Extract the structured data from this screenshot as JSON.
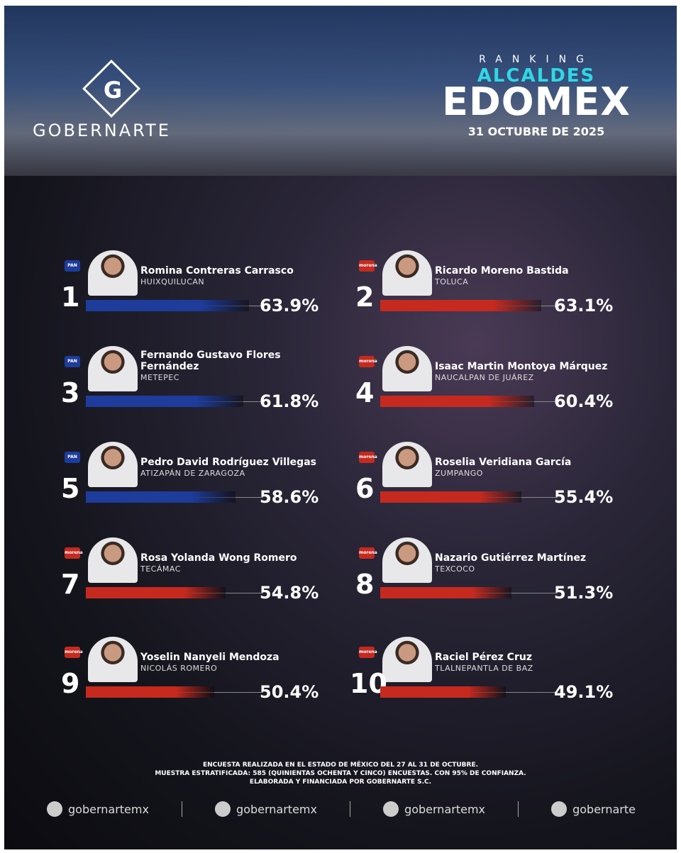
{
  "header": {
    "brand": "GOBERNARTE",
    "kicker": "RANKING",
    "title_line1": "ALCALDES",
    "title_line2": "EDOMEX",
    "date": "31 OCTUBRE DE 2025"
  },
  "chart_data": {
    "type": "bar",
    "ranks": [
      1,
      2,
      3,
      4,
      5,
      6,
      7,
      8,
      9,
      10
    ],
    "categories": [
      "Romina Contreras Carrasco",
      "Ricardo Moreno Bastida",
      "Fernando Gustavo Flores Fernández",
      "Isaac Martin Montoya Márquez",
      "Pedro David Rodríguez Villegas",
      "Roselia Veridiana García",
      "Rosa Yolanda Wong Romero",
      "Nazario Gutiérrez Martínez",
      "Yoselin Nanyeli Mendoza",
      "Raciel Pérez Cruz"
    ],
    "places": [
      "HUIXQUILUCAN",
      "TOLUCA",
      "METEPEC",
      "NAUCALPAN DE JUÁREZ",
      "ATIZAPÁN DE ZARAGOZA",
      "ZUMPANGO",
      "TECÁMAC",
      "TEXCOCO",
      "NICOLÁS ROMERO",
      "TLALNEPANTLA DE BAZ"
    ],
    "parties": [
      "PAN",
      "morena",
      "PAN",
      "morena",
      "PAN",
      "morena",
      "morena",
      "morena",
      "morena",
      "morena"
    ],
    "colors": [
      "#1d3c9c",
      "#c62a1f",
      "#1d3c9c",
      "#c62a1f",
      "#1d3c9c",
      "#c62a1f",
      "#c62a1f",
      "#c62a1f",
      "#c62a1f",
      "#c62a1f"
    ],
    "values": [
      63.9,
      63.1,
      61.8,
      60.4,
      58.6,
      55.4,
      54.8,
      51.3,
      50.4,
      49.1
    ],
    "value_labels": [
      "63.9%",
      "63.1%",
      "61.8%",
      "60.4%",
      "58.6%",
      "55.4%",
      "54.8%",
      "51.3%",
      "50.4%",
      "49.1%"
    ]
  },
  "footer": {
    "notes": [
      "ENCUESTA REALIZADA EN EL ESTADO DE MÉXICO DEL 27 AL 31 DE OCTUBRE.",
      "MUESTRA ESTRATIFICADA: 585 (QUINIENTAS OCHENTA Y CINCO) ENCUESTAS. CON 95% DE CONFIANZA.",
      "ELABORADA Y FINANCIADA POR GOBERNARTE S.C."
    ],
    "social": [
      "gobernartemx",
      "gobernartemx",
      "gobernartemx",
      "gobernarte"
    ]
  }
}
